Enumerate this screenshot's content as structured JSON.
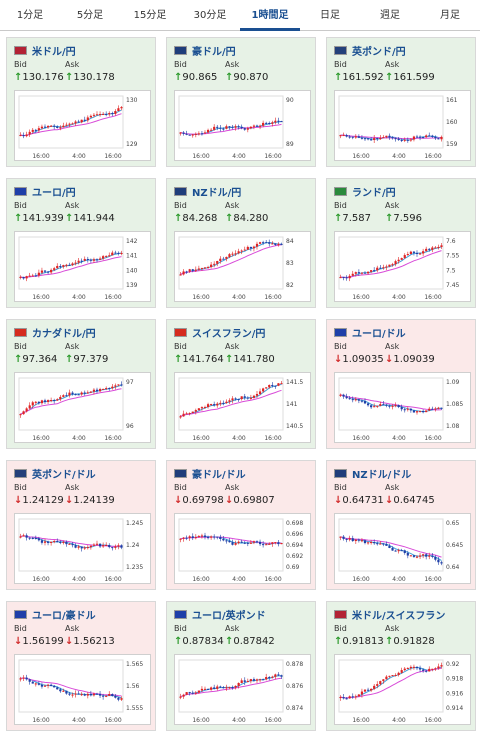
{
  "tabs": [
    {
      "label": "1分足",
      "active": false
    },
    {
      "label": "5分足",
      "active": false
    },
    {
      "label": "15分足",
      "active": false
    },
    {
      "label": "30分足",
      "active": false
    },
    {
      "label": "1時間足",
      "active": true
    },
    {
      "label": "日足",
      "active": false
    },
    {
      "label": "週足",
      "active": false
    },
    {
      "label": "月足",
      "active": false
    }
  ],
  "labels": {
    "bid": "Bid",
    "ask": "Ask"
  },
  "x_ticks": [
    "16:00",
    "4:00",
    "16:00"
  ],
  "colors": {
    "up_arrow": "#2b9a2b",
    "down_arrow": "#d12a2a",
    "pair_text": "#1a4f91",
    "candle_up": "#e02424",
    "candle_down": "#1f3fa8",
    "ma_short": "#3f9ed8",
    "ma_long": "#d84bd8"
  },
  "cards": [
    {
      "pair": "米ドル/円",
      "trend": "up",
      "bid": "130.176",
      "ask": "130.178",
      "flag": "us",
      "y_ticks": [
        "130",
        "129"
      ],
      "seed": 11
    },
    {
      "pair": "豪ドル/円",
      "trend": "up",
      "bid": "90.865",
      "ask": "90.870",
      "flag": "au",
      "y_ticks": [
        "90",
        "89"
      ],
      "seed": 23
    },
    {
      "pair": "英ポンド/円",
      "trend": "up",
      "bid": "161.592",
      "ask": "161.599",
      "flag": "gb",
      "y_ticks": [
        "161",
        "160",
        "159"
      ],
      "seed": 37
    },
    {
      "pair": "ユーロ/円",
      "trend": "up",
      "bid": "141.939",
      "ask": "141.944",
      "flag": "eu",
      "y_ticks": [
        "142",
        "141",
        "140",
        "139"
      ],
      "seed": 41
    },
    {
      "pair": "NZドル/円",
      "trend": "up",
      "bid": "84.268",
      "ask": "84.280",
      "flag": "nz",
      "y_ticks": [
        "84",
        "83",
        "82"
      ],
      "seed": 53
    },
    {
      "pair": "ランド/円",
      "trend": "up",
      "bid": "7.587",
      "ask": "7.596",
      "flag": "za",
      "y_ticks": [
        "7.6",
        "7.55",
        "7.5",
        "7.45"
      ],
      "seed": 67
    },
    {
      "pair": "カナダドル/円",
      "trend": "up",
      "bid": "97.364",
      "ask": "97.379",
      "flag": "ca",
      "y_ticks": [
        "97",
        "96"
      ],
      "seed": 71
    },
    {
      "pair": "スイスフラン/円",
      "trend": "up",
      "bid": "141.764",
      "ask": "141.780",
      "flag": "ch",
      "y_ticks": [
        "141.5",
        "141",
        "140.5"
      ],
      "seed": 83
    },
    {
      "pair": "ユーロ/ドル",
      "trend": "down",
      "bid": "1.09035",
      "ask": "1.09039",
      "flag": "eu-us",
      "y_ticks": [
        "1.09",
        "1.085",
        "1.08"
      ],
      "seed": 97
    },
    {
      "pair": "英ポンド/ドル",
      "trend": "down",
      "bid": "1.24129",
      "ask": "1.24139",
      "flag": "gb-us",
      "y_ticks": [
        "1.245",
        "1.24",
        "1.235"
      ],
      "seed": 101
    },
    {
      "pair": "豪ドル/ドル",
      "trend": "down",
      "bid": "0.69798",
      "ask": "0.69807",
      "flag": "au-us",
      "y_ticks": [
        "0.698",
        "0.696",
        "0.694",
        "0.692",
        "0.69"
      ],
      "seed": 113
    },
    {
      "pair": "NZドル/ドル",
      "trend": "down",
      "bid": "0.64731",
      "ask": "0.64745",
      "flag": "nz-us",
      "y_ticks": [
        "0.65",
        "0.645",
        "0.64"
      ],
      "seed": 127
    },
    {
      "pair": "ユーロ/豪ドル",
      "trend": "down",
      "bid": "1.56199",
      "ask": "1.56213",
      "flag": "eu-au",
      "y_ticks": [
        "1.565",
        "1.56",
        "1.555"
      ],
      "seed": 131
    },
    {
      "pair": "ユーロ/英ポンド",
      "trend": "up",
      "bid": "0.87834",
      "ask": "0.87842",
      "flag": "eu-gb",
      "y_ticks": [
        "0.878",
        "0.876",
        "0.874"
      ],
      "seed": 149
    },
    {
      "pair": "米ドル/スイスフラン",
      "trend": "up",
      "bid": "0.91813",
      "ask": "0.91828",
      "flag": "us-ch",
      "y_ticks": [
        "0.92",
        "0.918",
        "0.916",
        "0.914"
      ],
      "seed": 151
    }
  ]
}
